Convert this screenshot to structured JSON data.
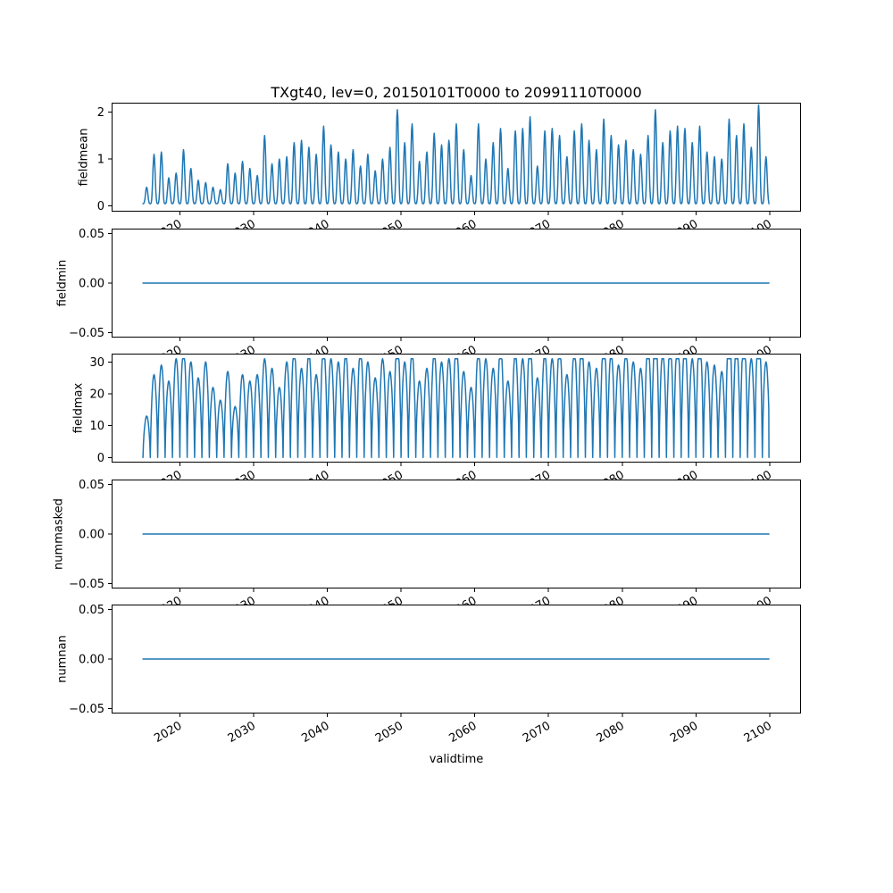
{
  "figure": {
    "title": "TXgt40, lev=0, 20150101T0000 to 20991110T0000",
    "xlabel": "validtime"
  },
  "colors": {
    "line": "#1f77b4",
    "axes": "#000000",
    "background": "#ffffff"
  },
  "axis": {
    "xlim": [
      2010.75,
      2104.25
    ],
    "xticks": [
      2020,
      2030,
      2040,
      2050,
      2060,
      2070,
      2080,
      2090,
      2100
    ],
    "xtick_labels": [
      "2020",
      "2030",
      "2040",
      "2050",
      "2060",
      "2070",
      "2080",
      "2090",
      "2100"
    ],
    "x_data_start": 2015.0,
    "x_data_end": 2099.9
  },
  "chart_data": [
    {
      "name": "fieldmean",
      "type": "line",
      "ylabel": "fieldmean",
      "ylim": [
        -0.12,
        2.2
      ],
      "yticks": [
        0,
        1,
        2
      ],
      "ytick_labels": [
        "0",
        "1",
        "2"
      ],
      "series_kind": "annual_spikes",
      "baseline": 0.05,
      "peak_exponent": 4,
      "clamp": null,
      "annual_peaks": [
        0.35,
        1.05,
        1.1,
        0.55,
        0.65,
        1.15,
        0.75,
        0.5,
        0.45,
        0.35,
        0.3,
        0.85,
        0.65,
        0.9,
        0.75,
        0.6,
        1.45,
        0.85,
        0.95,
        1.0,
        1.3,
        1.35,
        1.2,
        1.05,
        1.65,
        1.25,
        1.1,
        0.95,
        1.15,
        0.8,
        1.05,
        0.7,
        0.95,
        1.2,
        2.0,
        1.3,
        1.7,
        0.9,
        1.1,
        1.5,
        1.25,
        1.35,
        1.7,
        1.15,
        0.6,
        1.7,
        0.95,
        1.3,
        1.6,
        0.75,
        1.55,
        1.6,
        1.85,
        0.8,
        1.55,
        1.6,
        1.45,
        1.0,
        1.55,
        1.7,
        1.35,
        1.15,
        1.8,
        1.45,
        1.25,
        1.35,
        1.15,
        1.05,
        1.45,
        2.0,
        1.3,
        1.55,
        1.65,
        1.6,
        1.3,
        1.65,
        1.1,
        1.0,
        0.95,
        1.8,
        1.45,
        1.7,
        1.2,
        2.1,
        1.0
      ]
    },
    {
      "name": "fieldmin",
      "type": "line",
      "ylabel": "fieldmin",
      "ylim": [
        -0.055,
        0.055
      ],
      "yticks": [
        -0.05,
        0,
        0.05
      ],
      "ytick_labels": [
        "−0.05",
        "0.00",
        "0.05"
      ],
      "series_kind": "constant",
      "value": 0.0
    },
    {
      "name": "fieldmax",
      "type": "line",
      "ylabel": "fieldmax",
      "ylim": [
        -1.6,
        32.6
      ],
      "yticks": [
        0,
        10,
        20,
        30
      ],
      "ytick_labels": [
        "0",
        "10",
        "20",
        "30"
      ],
      "series_kind": "annual_spikes",
      "baseline": 0.0,
      "peak_exponent": 0.7,
      "clamp": 31,
      "annual_peaks": [
        13,
        26,
        29,
        24,
        31,
        34,
        30,
        25,
        30,
        22,
        18,
        27,
        16,
        26,
        24,
        26,
        31,
        28,
        22,
        30,
        34,
        28,
        33,
        26,
        35,
        31,
        30,
        33,
        28,
        34,
        30,
        25,
        31,
        27,
        38,
        30,
        33,
        24,
        28,
        33,
        30,
        31,
        36,
        27,
        22,
        34,
        31,
        28,
        35,
        24,
        33,
        31,
        37,
        25,
        33,
        31,
        35,
        26,
        34,
        36,
        30,
        28,
        38,
        33,
        29,
        34,
        30,
        28,
        36,
        40,
        33,
        35,
        37,
        36,
        31,
        38,
        30,
        29,
        27,
        40,
        36,
        38,
        31,
        42,
        30
      ]
    },
    {
      "name": "nummasked",
      "type": "line",
      "ylabel": "nummasked",
      "ylim": [
        -0.055,
        0.055
      ],
      "yticks": [
        -0.05,
        0,
        0.05
      ],
      "ytick_labels": [
        "−0.05",
        "0.00",
        "0.05"
      ],
      "series_kind": "constant",
      "value": 0.0
    },
    {
      "name": "numnan",
      "type": "line",
      "ylabel": "numnan",
      "ylim": [
        -0.055,
        0.055
      ],
      "yticks": [
        -0.05,
        0,
        0.05
      ],
      "ytick_labels": [
        "−0.05",
        "0.00",
        "0.05"
      ],
      "series_kind": "constant",
      "value": 0.0
    }
  ]
}
